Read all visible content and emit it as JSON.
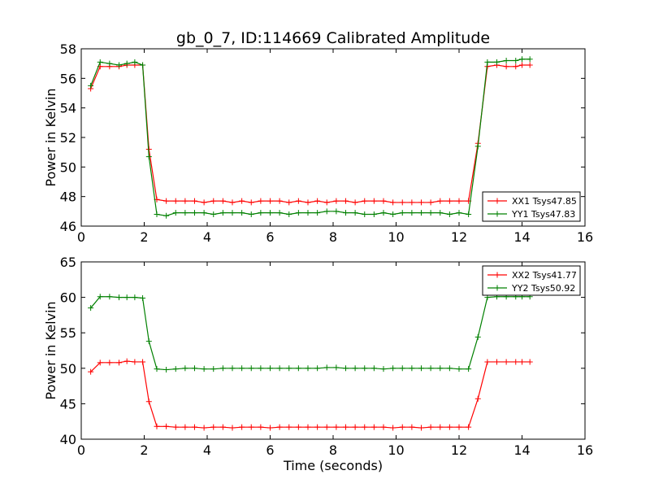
{
  "chart_data": [
    {
      "type": "line",
      "title": "gb_0_7, ID:114669 Calibrated Amplitude",
      "xlabel": "",
      "ylabel": "Power in Kelvin",
      "xlim": [
        0,
        16
      ],
      "ylim": [
        46,
        58
      ],
      "xticks": [
        0,
        2,
        4,
        6,
        8,
        10,
        12,
        14,
        16
      ],
      "yticks": [
        46,
        48,
        50,
        52,
        54,
        56,
        58
      ],
      "legend_position": "lower-right",
      "grid": false,
      "x": [
        0.3,
        0.6,
        0.9,
        1.2,
        1.45,
        1.7,
        1.95,
        2.15,
        2.4,
        2.7,
        3.0,
        3.3,
        3.6,
        3.9,
        4.2,
        4.5,
        4.8,
        5.1,
        5.4,
        5.7,
        6.0,
        6.3,
        6.6,
        6.9,
        7.2,
        7.5,
        7.8,
        8.1,
        8.4,
        8.7,
        9.0,
        9.3,
        9.6,
        9.9,
        10.2,
        10.5,
        10.8,
        11.1,
        11.4,
        11.7,
        12.0,
        12.3,
        12.6,
        12.9,
        13.2,
        13.5,
        13.8,
        14.0,
        14.25
      ],
      "series": [
        {
          "name": "XX1 Tsys47.85",
          "color": "#ff0000",
          "values": [
            55.3,
            56.8,
            56.8,
            56.8,
            56.9,
            56.9,
            56.9,
            51.2,
            47.8,
            47.7,
            47.7,
            47.7,
            47.7,
            47.6,
            47.7,
            47.7,
            47.6,
            47.7,
            47.6,
            47.7,
            47.7,
            47.7,
            47.6,
            47.7,
            47.6,
            47.7,
            47.6,
            47.7,
            47.7,
            47.6,
            47.7,
            47.7,
            47.7,
            47.6,
            47.6,
            47.6,
            47.6,
            47.6,
            47.7,
            47.7,
            47.7,
            47.7,
            51.6,
            56.8,
            56.9,
            56.8,
            56.8,
            56.9,
            56.9
          ]
        },
        {
          "name": "YY1 Tsys47.83",
          "color": "#008000",
          "values": [
            55.5,
            57.1,
            57.0,
            56.9,
            57.0,
            57.1,
            56.9,
            50.7,
            46.8,
            46.7,
            46.9,
            46.9,
            46.9,
            46.9,
            46.8,
            46.9,
            46.9,
            46.9,
            46.8,
            46.9,
            46.9,
            46.9,
            46.8,
            46.9,
            46.9,
            46.9,
            47.0,
            47.0,
            46.9,
            46.9,
            46.8,
            46.8,
            46.9,
            46.8,
            46.9,
            46.9,
            46.9,
            46.9,
            46.9,
            46.8,
            46.9,
            46.8,
            51.4,
            57.1,
            57.1,
            57.2,
            57.2,
            57.3,
            57.3
          ]
        }
      ]
    },
    {
      "type": "line",
      "title": "",
      "xlabel": "Time (seconds)",
      "ylabel": "Power in Kelvin",
      "xlim": [
        0,
        16
      ],
      "ylim": [
        40,
        65
      ],
      "xticks": [
        0,
        2,
        4,
        6,
        8,
        10,
        12,
        14,
        16
      ],
      "yticks": [
        40,
        45,
        50,
        55,
        60,
        65
      ],
      "legend_position": "upper-right",
      "grid": false,
      "x": [
        0.3,
        0.6,
        0.9,
        1.2,
        1.45,
        1.7,
        1.95,
        2.15,
        2.4,
        2.7,
        3.0,
        3.3,
        3.6,
        3.9,
        4.2,
        4.5,
        4.8,
        5.1,
        5.4,
        5.7,
        6.0,
        6.3,
        6.6,
        6.9,
        7.2,
        7.5,
        7.8,
        8.1,
        8.4,
        8.7,
        9.0,
        9.3,
        9.6,
        9.9,
        10.2,
        10.5,
        10.8,
        11.1,
        11.4,
        11.7,
        12.0,
        12.3,
        12.6,
        12.9,
        13.2,
        13.5,
        13.8,
        14.0,
        14.25
      ],
      "series": [
        {
          "name": "XX2 Tsys41.77",
          "color": "#ff0000",
          "values": [
            49.5,
            50.8,
            50.8,
            50.8,
            51.0,
            50.9,
            50.9,
            45.3,
            41.8,
            41.8,
            41.7,
            41.7,
            41.7,
            41.6,
            41.7,
            41.7,
            41.6,
            41.7,
            41.7,
            41.7,
            41.6,
            41.7,
            41.7,
            41.7,
            41.7,
            41.7,
            41.7,
            41.7,
            41.7,
            41.7,
            41.7,
            41.7,
            41.7,
            41.6,
            41.7,
            41.7,
            41.6,
            41.7,
            41.7,
            41.7,
            41.7,
            41.7,
            45.7,
            50.9,
            50.9,
            50.9,
            50.9,
            50.9,
            50.9
          ]
        },
        {
          "name": "YY2 Tsys50.92",
          "color": "#008000",
          "values": [
            58.5,
            60.1,
            60.1,
            60.0,
            60.0,
            60.0,
            59.9,
            53.8,
            49.9,
            49.8,
            49.9,
            50.0,
            50.0,
            49.9,
            49.9,
            50.0,
            50.0,
            50.0,
            50.0,
            50.0,
            50.0,
            50.0,
            50.0,
            50.0,
            50.0,
            50.0,
            50.1,
            50.1,
            50.0,
            50.0,
            50.0,
            50.0,
            49.9,
            50.0,
            50.0,
            50.0,
            50.0,
            50.0,
            50.0,
            50.0,
            49.9,
            49.9,
            54.4,
            60.0,
            60.1,
            60.1,
            60.1,
            60.1,
            60.1
          ]
        }
      ]
    }
  ]
}
